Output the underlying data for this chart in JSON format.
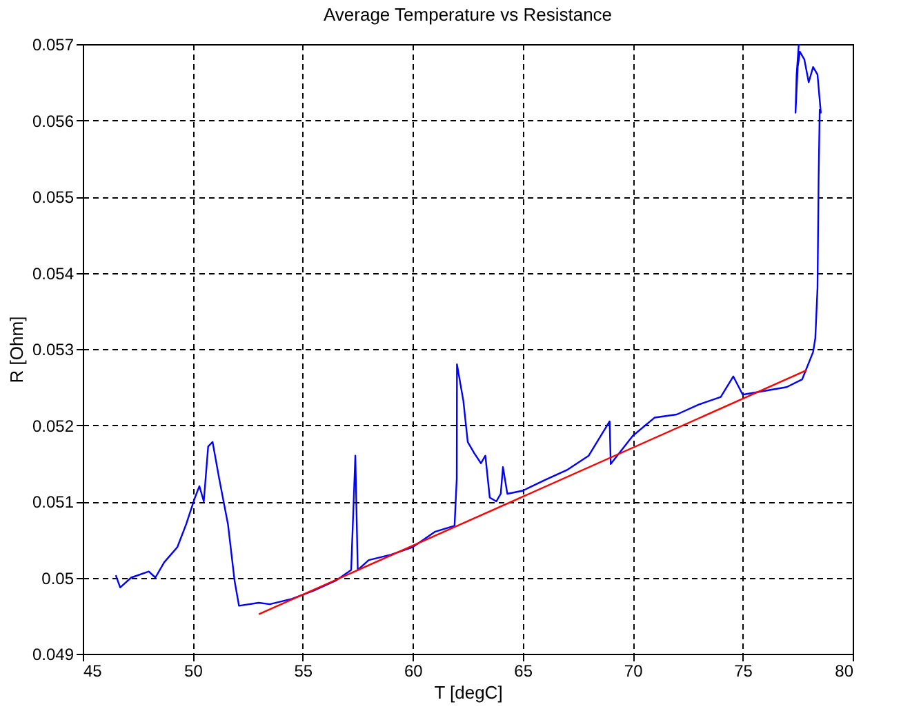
{
  "chart_data": {
    "type": "line",
    "title": "Average Temperature vs Resistance",
    "xlabel": "T [degC]",
    "ylabel": "R [Ohm]",
    "xlim": [
      45,
      80
    ],
    "xticks": [
      45,
      50,
      55,
      60,
      65,
      70,
      75,
      80
    ],
    "ylim": [
      0.049,
      0.057
    ],
    "yticks": [
      0.049,
      0.05,
      0.051,
      0.052,
      0.053,
      0.054,
      0.055,
      0.056,
      0.057
    ],
    "grid": true,
    "marker": "none",
    "line_style": "solid",
    "series": [
      {
        "color": "#0000ff",
        "x": [
          46.5,
          46.7,
          47.2,
          48.0,
          48.3,
          48.7,
          49.3,
          49.7,
          50.1,
          50.3,
          50.5,
          50.7,
          50.9,
          51.2,
          51.6,
          51.9,
          52.1,
          53.0,
          53.5,
          54.5,
          55.5,
          56.5,
          57.2,
          57.39,
          57.5,
          58.0,
          59.0,
          60.0,
          61.0,
          61.9,
          62.0,
          62.01,
          62.3,
          62.5,
          62.8,
          63.1,
          63.3,
          63.5,
          63.8,
          64.0,
          64.1,
          64.3,
          65.0,
          66.0,
          67.0,
          68.0,
          68.95,
          69.0,
          70.0,
          71.0,
          72.0,
          73.0,
          74.0,
          74.57,
          75.0,
          76.0,
          77.0,
          77.7,
          78.2,
          78.3,
          78.4,
          78.45,
          78.5,
          78.55,
          78.4,
          78.2,
          78.0,
          77.8,
          77.6,
          77.5,
          77.4,
          77.45,
          77.55
        ],
        "values": [
          0.05003,
          0.04987,
          0.05,
          0.05008,
          0.05,
          0.0502,
          0.0504,
          0.0507,
          0.05105,
          0.0512,
          0.051,
          0.05172,
          0.05178,
          0.0513,
          0.0507,
          0.04996,
          0.04963,
          0.04967,
          0.04965,
          0.04972,
          0.04983,
          0.04996,
          0.0501,
          0.0516,
          0.0501,
          0.05023,
          0.0503,
          0.0504,
          0.0506,
          0.05068,
          0.0513,
          0.0528,
          0.05232,
          0.05178,
          0.05163,
          0.0515,
          0.0516,
          0.05105,
          0.051,
          0.0511,
          0.05145,
          0.0511,
          0.05114,
          0.05128,
          0.05141,
          0.0516,
          0.05205,
          0.05149,
          0.05186,
          0.0521,
          0.05214,
          0.05227,
          0.05237,
          0.05264,
          0.0524,
          0.05245,
          0.0525,
          0.0526,
          0.05296,
          0.05314,
          0.0538,
          0.05523,
          0.05614,
          0.0561,
          0.0566,
          0.0567,
          0.0565,
          0.0568,
          0.0569,
          0.0567,
          0.0561,
          0.0566,
          0.057
        ]
      },
      {
        "color": "#ff0000",
        "x": [
          53.0,
          77.9
        ],
        "values": [
          0.04952,
          0.05272
        ]
      }
    ]
  }
}
